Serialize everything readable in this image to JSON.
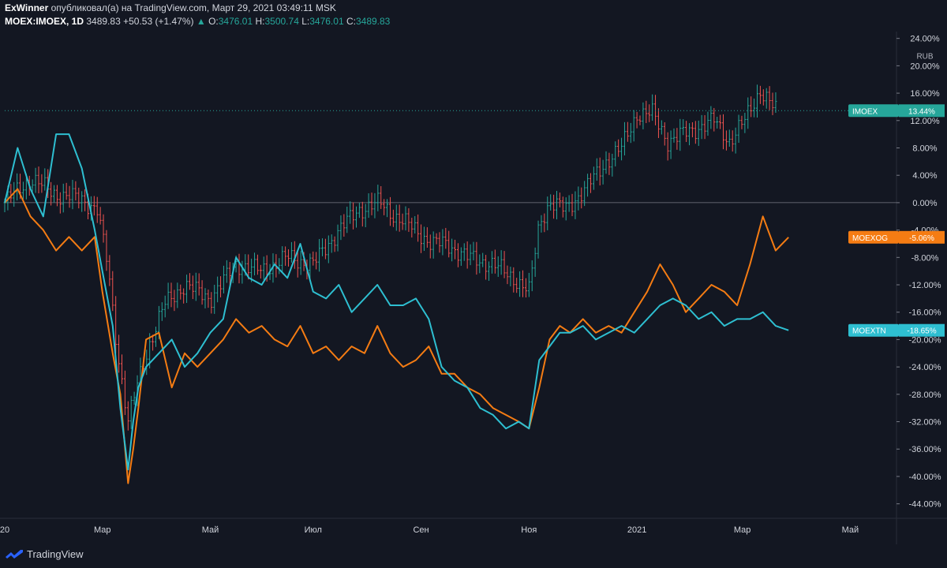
{
  "header": {
    "author": "ExWinner",
    "published_text": "опубликовал(а) на TradingView.com, Март 29, 2021 03:49:11 MSK",
    "symbol": "MOEX:IMOEX, 1D",
    "last": "3489.83",
    "change": "+50.53 (+1.47%)",
    "o_label": "O:",
    "o_value": "3476.01",
    "h_label": "H:",
    "h_value": "3500.74",
    "l_label": "L:",
    "l_value": "3476.01",
    "c_label": "C:",
    "c_value": "3489.83"
  },
  "footer": {
    "brand": "TradingView"
  },
  "colors": {
    "up": "#26a69a",
    "down": "#ef5350",
    "moexog": "#f57c13",
    "moextn": "#2ebfd1",
    "imoex_tag": "#26a69a"
  },
  "chart_data": {
    "type": "line",
    "currency": "RUB",
    "ylim": [
      -46,
      25
    ],
    "y_ticks": [
      "24.00%",
      "20.00%",
      "16.00%",
      "12.00%",
      "8.00%",
      "4.00%",
      "0.00%",
      "-4.00%",
      "-8.00%",
      "-12.00%",
      "-16.00%",
      "-20.00%",
      "-24.00%",
      "-28.00%",
      "-32.00%",
      "-36.00%",
      "-40.00%",
      "-44.00%"
    ],
    "x_labels": [
      {
        "label": "20",
        "t": 0
      },
      {
        "label": "Мар",
        "t": 38
      },
      {
        "label": "Май",
        "t": 80
      },
      {
        "label": "Июл",
        "t": 120
      },
      {
        "label": "Сен",
        "t": 162
      },
      {
        "label": "Ноя",
        "t": 204
      },
      {
        "label": "2021",
        "t": 246
      },
      {
        "label": "Мар",
        "t": 287
      },
      {
        "label": "Май",
        "t": 329
      }
    ],
    "x_range": [
      0,
      347
    ],
    "last_values": [
      {
        "name": "IMOEX",
        "text": "13.44%",
        "value": 13.44
      },
      {
        "name": "MOEXOG",
        "text": "-5.06%",
        "value": -5.06
      },
      {
        "name": "MOEXTN",
        "text": "-18.65%",
        "value": -18.65
      }
    ],
    "series": [
      {
        "name": "IMOEX",
        "style": "ohlc",
        "x": [
          0,
          10,
          20,
          30,
          36,
          40,
          44,
          48,
          52,
          56,
          62,
          70,
          80,
          90,
          100,
          110,
          120,
          130,
          138,
          146,
          152,
          160,
          166,
          172,
          180,
          190,
          198,
          204,
          208,
          212,
          218,
          226,
          234,
          240,
          246,
          252,
          258,
          264,
          270,
          276,
          282,
          288,
          294,
          300
        ],
        "values": [
          0,
          3.5,
          1.2,
          0.5,
          -1,
          -9,
          -22,
          -32,
          -26,
          -21,
          -15,
          -12,
          -14,
          -9,
          -10,
          -8,
          -9,
          -4,
          -1,
          0,
          -2,
          -4,
          -6,
          -6,
          -8,
          -9,
          -11,
          -13,
          -3,
          0,
          -1,
          2,
          6,
          8,
          13,
          13,
          9,
          10,
          11,
          12,
          9,
          12,
          16.5,
          13.44
        ]
      },
      {
        "name": "MOEXOG",
        "style": "line",
        "x": [
          0,
          5,
          10,
          15,
          20,
          25,
          30,
          35,
          38,
          42,
          45,
          48,
          50,
          52,
          55,
          60,
          65,
          70,
          75,
          80,
          85,
          90,
          95,
          100,
          105,
          110,
          115,
          120,
          125,
          130,
          135,
          140,
          145,
          150,
          155,
          160,
          165,
          170,
          175,
          180,
          185,
          190,
          195,
          200,
          204,
          208,
          212,
          216,
          220,
          225,
          230,
          235,
          240,
          245,
          250,
          255,
          260,
          265,
          270,
          275,
          280,
          285,
          290,
          295,
          300,
          305
        ],
        "values": [
          0,
          2,
          -2,
          -4,
          -7,
          -5,
          -7,
          -5,
          -13,
          -22,
          -28,
          -41,
          -36,
          -30,
          -20,
          -19,
          -27,
          -22,
          -24,
          -22,
          -20,
          -17,
          -19,
          -18,
          -20,
          -21,
          -18,
          -22,
          -21,
          -23,
          -21,
          -22,
          -18,
          -22,
          -24,
          -23,
          -21,
          -25,
          -25,
          -27,
          -28,
          -30,
          -31,
          -32,
          -33,
          -27,
          -20,
          -18,
          -19,
          -17,
          -19,
          -18,
          -19,
          -16,
          -13,
          -9,
          -12,
          -16,
          -14,
          -12,
          -13,
          -15,
          -9,
          -2,
          -7,
          -5.06
        ]
      },
      {
        "name": "MOEXTN",
        "style": "line",
        "x": [
          0,
          5,
          10,
          15,
          20,
          25,
          30,
          35,
          38,
          42,
          45,
          48,
          50,
          52,
          55,
          60,
          65,
          70,
          75,
          80,
          85,
          90,
          95,
          100,
          105,
          110,
          115,
          120,
          125,
          130,
          135,
          140,
          145,
          150,
          155,
          160,
          165,
          170,
          175,
          180,
          185,
          190,
          195,
          200,
          204,
          208,
          212,
          216,
          220,
          225,
          230,
          235,
          240,
          245,
          250,
          255,
          260,
          265,
          270,
          275,
          280,
          285,
          290,
          295,
          300,
          305
        ],
        "values": [
          0,
          8,
          2,
          -2,
          10,
          10,
          5,
          -4,
          -10,
          -18,
          -30,
          -39,
          -32,
          -27,
          -24,
          -22,
          -20,
          -24,
          -22,
          -19,
          -17,
          -8,
          -11,
          -12,
          -9,
          -11,
          -6,
          -13,
          -14,
          -12,
          -16,
          -14,
          -12,
          -15,
          -15,
          -14,
          -17,
          -24,
          -26,
          -27,
          -30,
          -31,
          -33,
          -32,
          -33,
          -23,
          -21,
          -19,
          -19,
          -18,
          -20,
          -19,
          -18,
          -19,
          -17,
          -15,
          -14,
          -15,
          -17,
          -16,
          -18,
          -17,
          -17,
          -16,
          -18,
          -18.65
        ]
      }
    ]
  }
}
